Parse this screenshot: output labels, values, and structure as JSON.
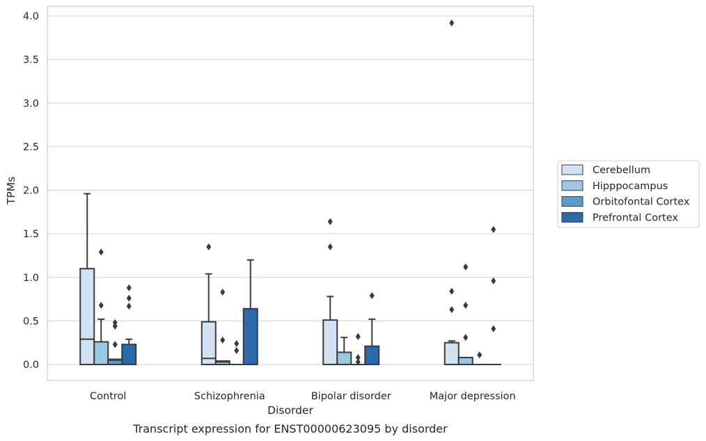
{
  "chart_data": {
    "type": "box",
    "title": "",
    "caption": "Transcript expression for ENST00000623095 by disorder",
    "xlabel": "Disorder",
    "ylabel": "TPMs",
    "ylim": [
      -0.19,
      4.12
    ],
    "yticks": [
      "0.0",
      "0.5",
      "1.0",
      "1.5",
      "2.0",
      "2.5",
      "3.0",
      "3.5",
      "4.0"
    ],
    "grid": true,
    "legend_position": "right",
    "categories": [
      "Control",
      "Schizophrenia",
      "Bipolar disorder",
      "Major depression"
    ],
    "series": [
      {
        "name": "Cerebellum",
        "color": "#d1e2f2",
        "boxes": [
          {
            "q1": 0.0,
            "median": 0.29,
            "q3": 1.1,
            "whisker_low": 0.0,
            "whisker_high": 1.96,
            "outliers": []
          },
          {
            "q1": 0.0,
            "median": 0.07,
            "q3": 0.49,
            "whisker_low": 0.0,
            "whisker_high": 1.04,
            "outliers": [
              1.35
            ]
          },
          {
            "q1": 0.0,
            "median": 0.0,
            "q3": 0.51,
            "whisker_low": 0.0,
            "whisker_high": 0.78,
            "outliers": [
              1.35,
              1.64
            ]
          },
          {
            "q1": 0.0,
            "median": 0.0,
            "q3": 0.25,
            "whisker_low": 0.0,
            "whisker_high": 0.27,
            "outliers": [
              0.63,
              0.84,
              3.92
            ]
          }
        ]
      },
      {
        "name": "Hipppocampus",
        "color": "#9ac8e0",
        "boxes": [
          {
            "q1": 0.0,
            "median": 0.0,
            "q3": 0.26,
            "whisker_low": 0.0,
            "whisker_high": 0.52,
            "outliers": [
              0.68,
              1.29
            ]
          },
          {
            "q1": 0.0,
            "median": 0.03,
            "q3": 0.04,
            "whisker_low": 0.0,
            "whisker_high": 0.04,
            "outliers": [
              0.28,
              0.83
            ]
          },
          {
            "q1": 0.0,
            "median": 0.0,
            "q3": 0.14,
            "whisker_low": 0.0,
            "whisker_high": 0.31,
            "outliers": []
          },
          {
            "q1": 0.0,
            "median": 0.0,
            "q3": 0.08,
            "whisker_low": 0.0,
            "whisker_high": 0.08,
            "outliers": [
              0.31,
              0.68,
              1.12
            ]
          }
        ]
      },
      {
        "name": "Orbitofontal Cortex",
        "color": "#5a9ec9",
        "boxes": [
          {
            "q1": 0.0,
            "median": 0.05,
            "q3": 0.06,
            "whisker_low": 0.0,
            "whisker_high": 0.06,
            "outliers": [
              0.23,
              0.44,
              0.48
            ]
          },
          {
            "q1": 0.0,
            "median": 0.0,
            "q3": 0.0,
            "whisker_low": 0.0,
            "whisker_high": 0.0,
            "outliers": [
              0.16,
              0.24
            ]
          },
          {
            "q1": 0.0,
            "median": 0.0,
            "q3": 0.0,
            "whisker_low": 0.0,
            "whisker_high": 0.0,
            "outliers": [
              0.03,
              0.08,
              0.32
            ]
          },
          {
            "q1": 0.0,
            "median": 0.0,
            "q3": 0.0,
            "whisker_low": 0.0,
            "whisker_high": 0.0,
            "outliers": [
              0.11
            ]
          }
        ]
      },
      {
        "name": "Prefrontal Cortex",
        "color": "#2a6aab",
        "boxes": [
          {
            "q1": 0.0,
            "median": 0.0,
            "q3": 0.23,
            "whisker_low": 0.0,
            "whisker_high": 0.29,
            "outliers": [
              0.67,
              0.76,
              0.88
            ]
          },
          {
            "q1": 0.0,
            "median": 0.0,
            "q3": 0.64,
            "whisker_low": 0.0,
            "whisker_high": 1.2,
            "outliers": []
          },
          {
            "q1": 0.0,
            "median": 0.0,
            "q3": 0.21,
            "whisker_low": 0.0,
            "whisker_high": 0.52,
            "outliers": [
              0.79
            ]
          },
          {
            "q1": 0.0,
            "median": 0.0,
            "q3": 0.0,
            "whisker_low": 0.0,
            "whisker_high": 0.0,
            "outliers": [
              0.41,
              0.96,
              1.55
            ]
          }
        ]
      }
    ]
  }
}
